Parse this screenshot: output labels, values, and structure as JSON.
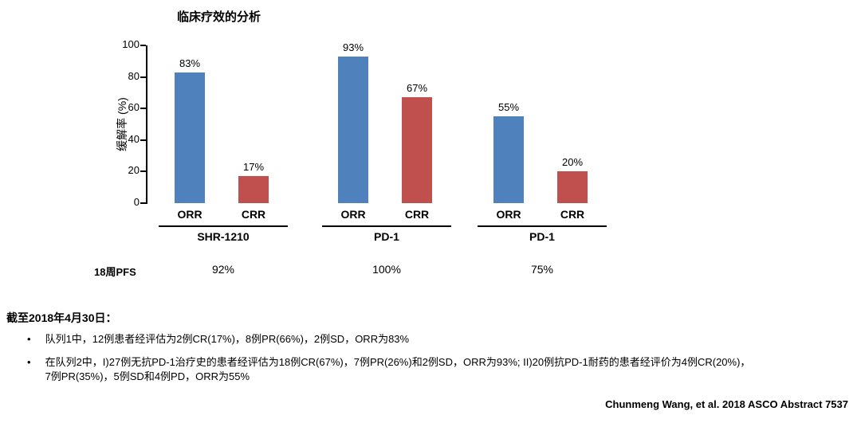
{
  "chart_data": {
    "type": "bar",
    "title": "临床疗效的分析",
    "ylabel": "缓解率 (%)",
    "ylim": [
      0,
      100
    ],
    "yticks": [
      0,
      20,
      40,
      60,
      80,
      100
    ],
    "grid": false,
    "bar_colors": {
      "blue": "#4f81bd",
      "red": "#c0504d"
    },
    "pfs_row_label": "18周PFS",
    "groups": [
      {
        "label": "SHR-1210",
        "pfs": "92%",
        "bars": [
          {
            "category": "ORR",
            "value": 83,
            "value_label": "83%",
            "color": "blue"
          },
          {
            "category": "CRR",
            "value": 17,
            "value_label": "17%",
            "color": "red"
          }
        ]
      },
      {
        "label": "PD-1",
        "pfs": "100%",
        "bars": [
          {
            "category": "ORR",
            "value": 93,
            "value_label": "93%",
            "color": "blue"
          },
          {
            "category": "CRR",
            "value": 67,
            "value_label": "67%",
            "color": "red"
          }
        ]
      },
      {
        "label": "PD-1",
        "pfs": "75%",
        "bars": [
          {
            "category": "ORR",
            "value": 55,
            "value_label": "55%",
            "color": "blue"
          },
          {
            "category": "CRR",
            "value": 20,
            "value_label": "20%",
            "color": "red"
          }
        ]
      }
    ]
  },
  "notes": {
    "heading": "截至2018年4月30日：",
    "bullets": [
      "队列1中，12例患者经评估为2例CR(17%)，8例PR(66%)，2例SD，ORR为83%",
      "在队列2中，I)27例无抗PD-1治疗史的患者经评估为18例CR(67%)，7例PR(26%)和2例SD，ORR为93%; II)20例抗PD-1耐药的患者经评价为4例CR(20%)，7例PR(35%)，5例SD和4例PD，ORR为55%"
    ],
    "citation": "Chunmeng Wang, et al. 2018 ASCO Abstract 7537"
  }
}
